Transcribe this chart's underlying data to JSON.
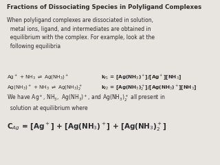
{
  "title": "Fractions of Dissociating Species in Polyligand Complexes",
  "background_color": "#e8e5e0",
  "text_color": "#2a2a2a",
  "figsize": [
    3.2,
    2.4
  ],
  "dpi": 100,
  "para": "When polyligand complexes are dissociated in solution,\n  metal ions, ligand, and intermediates are obtained in\n  equilibrium with the complex. For example, look at the\n  following equilibria",
  "eq1_left": "Ag$^+$ + NH$_3$ $\\rightleftharpoons$ Ag(NH$_3$)$^+$",
  "eq1_right": "k$_{f1}$ = [Ag(NH$_3$)$^+$]/[Ag$^+$][NH$_3$]",
  "eq2_left": "Ag(NH$_3$)$^+$ + NH$_3$ $\\rightleftharpoons$ Ag(NH$_3$)$_2^+$",
  "eq2_right": "k$_{f2}$ = [Ag(NH$_3$)$_2^+$]/[Ag(NH$_3$)$^+$][NH$_3$]",
  "we_have": "We have Ag$^+$, NH$_3$,  Ag(NH$_3$)$^+$, and Ag(NH$_3$)$_2^+$ all present in\n  solution at equilibrium where",
  "big_eq": "C$_{Ag}$ = [Ag$^+$] + [Ag(NH$_3$)$^+$] + [Ag(NH$_3$)$_2^+$]",
  "fs_title": 6.2,
  "fs_body": 5.5,
  "fs_eq": 5.2,
  "fs_big": 7.5
}
